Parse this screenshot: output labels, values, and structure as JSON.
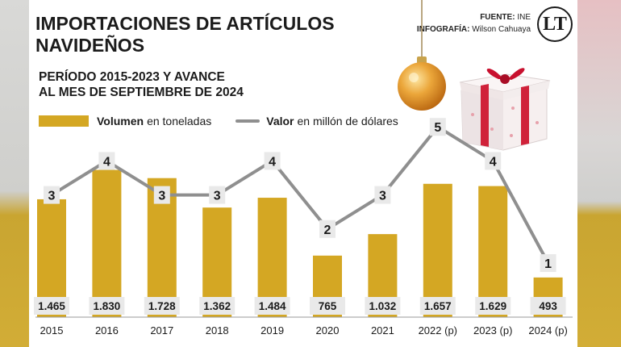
{
  "header": {
    "title_line1": "IMPORTACIONES DE ARTÍCULOS",
    "title_line2": "NAVIDEÑOS",
    "subtitle_line1": "PERÍODO 2015-2023 Y AVANCE",
    "subtitle_line2": "AL MES DE SEPTIEMBRE DE 2024",
    "source_label": "FUENTE:",
    "source_value": "INE",
    "infographic_label": "INFOGRAFÍA:",
    "infographic_value": "Wilson Cahuaya",
    "logo_text": "LT"
  },
  "legend": {
    "bar_bold": "Volumen",
    "bar_rest": "en toneladas",
    "line_bold": "Valor",
    "line_rest": "en millón de dólares"
  },
  "colors": {
    "bar": "#d4a723",
    "line": "#8f8f8f",
    "label_box": "#e9e9e9",
    "text": "#1b1b1b"
  },
  "decorations": [
    "christmas-ornament-icon",
    "gift-box-icon"
  ],
  "chart_data": {
    "type": "bar",
    "categories": [
      "2015",
      "2016",
      "2017",
      "2018",
      "2019",
      "2020",
      "2021",
      "2022 (p)",
      "2023 (p)",
      "2024 (p)"
    ],
    "series": [
      {
        "name": "Volumen en toneladas",
        "type": "bar",
        "values": [
          1465,
          1830,
          1728,
          1362,
          1484,
          765,
          1032,
          1657,
          1629,
          493
        ],
        "labels": [
          "1.465",
          "1.830",
          "1.728",
          "1.362",
          "1.484",
          "765",
          "1.032",
          "1.657",
          "1.629",
          "493"
        ]
      },
      {
        "name": "Valor en millón de dólares",
        "type": "line",
        "values": [
          3,
          4,
          3,
          3,
          4,
          2,
          3,
          5,
          4,
          1
        ],
        "labels": [
          "3",
          "4",
          "3",
          "3",
          "4",
          "2",
          "3",
          "5",
          "4",
          "1"
        ]
      }
    ],
    "title": "IMPORTACIONES DE ARTÍCULOS NAVIDEÑOS",
    "grid": false,
    "legend_position": "top-left"
  }
}
